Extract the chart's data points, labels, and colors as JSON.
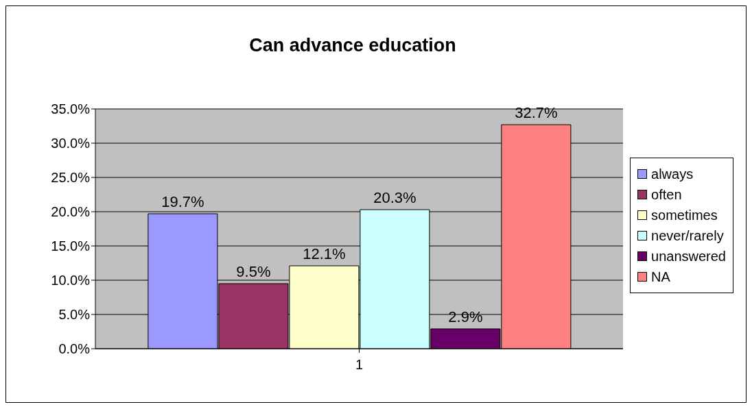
{
  "chart_data": {
    "type": "bar",
    "title": "Can advance education",
    "categories": [
      "1"
    ],
    "series": [
      {
        "name": "always",
        "color": "#9999ff",
        "values": [
          19.7
        ],
        "value_labels": [
          "19.7%"
        ]
      },
      {
        "name": "often",
        "color": "#993366",
        "values": [
          9.5
        ],
        "value_labels": [
          "9.5%"
        ]
      },
      {
        "name": "sometimes",
        "color": "#ffffcc",
        "values": [
          12.1
        ],
        "value_labels": [
          "12.1%"
        ]
      },
      {
        "name": "never/rarely",
        "color": "#ccffff",
        "values": [
          20.3
        ],
        "value_labels": [
          "20.3%"
        ]
      },
      {
        "name": "unanswered",
        "color": "#660066",
        "values": [
          2.9
        ],
        "value_labels": [
          "2.9%"
        ]
      },
      {
        "name": "NA",
        "color": "#ff8080",
        "values": [
          32.7
        ],
        "value_labels": [
          "32.7%"
        ]
      }
    ],
    "ylim": [
      0,
      35
    ],
    "yticks": [
      {
        "value": 0,
        "label": "0.0%"
      },
      {
        "value": 5,
        "label": "5.0%"
      },
      {
        "value": 10,
        "label": "10.0%"
      },
      {
        "value": 15,
        "label": "15.0%"
      },
      {
        "value": 20,
        "label": "20.0%"
      },
      {
        "value": 25,
        "label": "25.0%"
      },
      {
        "value": 30,
        "label": "30.0%"
      },
      {
        "value": 35,
        "label": "35.0%"
      }
    ],
    "grid": "y",
    "legend": "right"
  }
}
